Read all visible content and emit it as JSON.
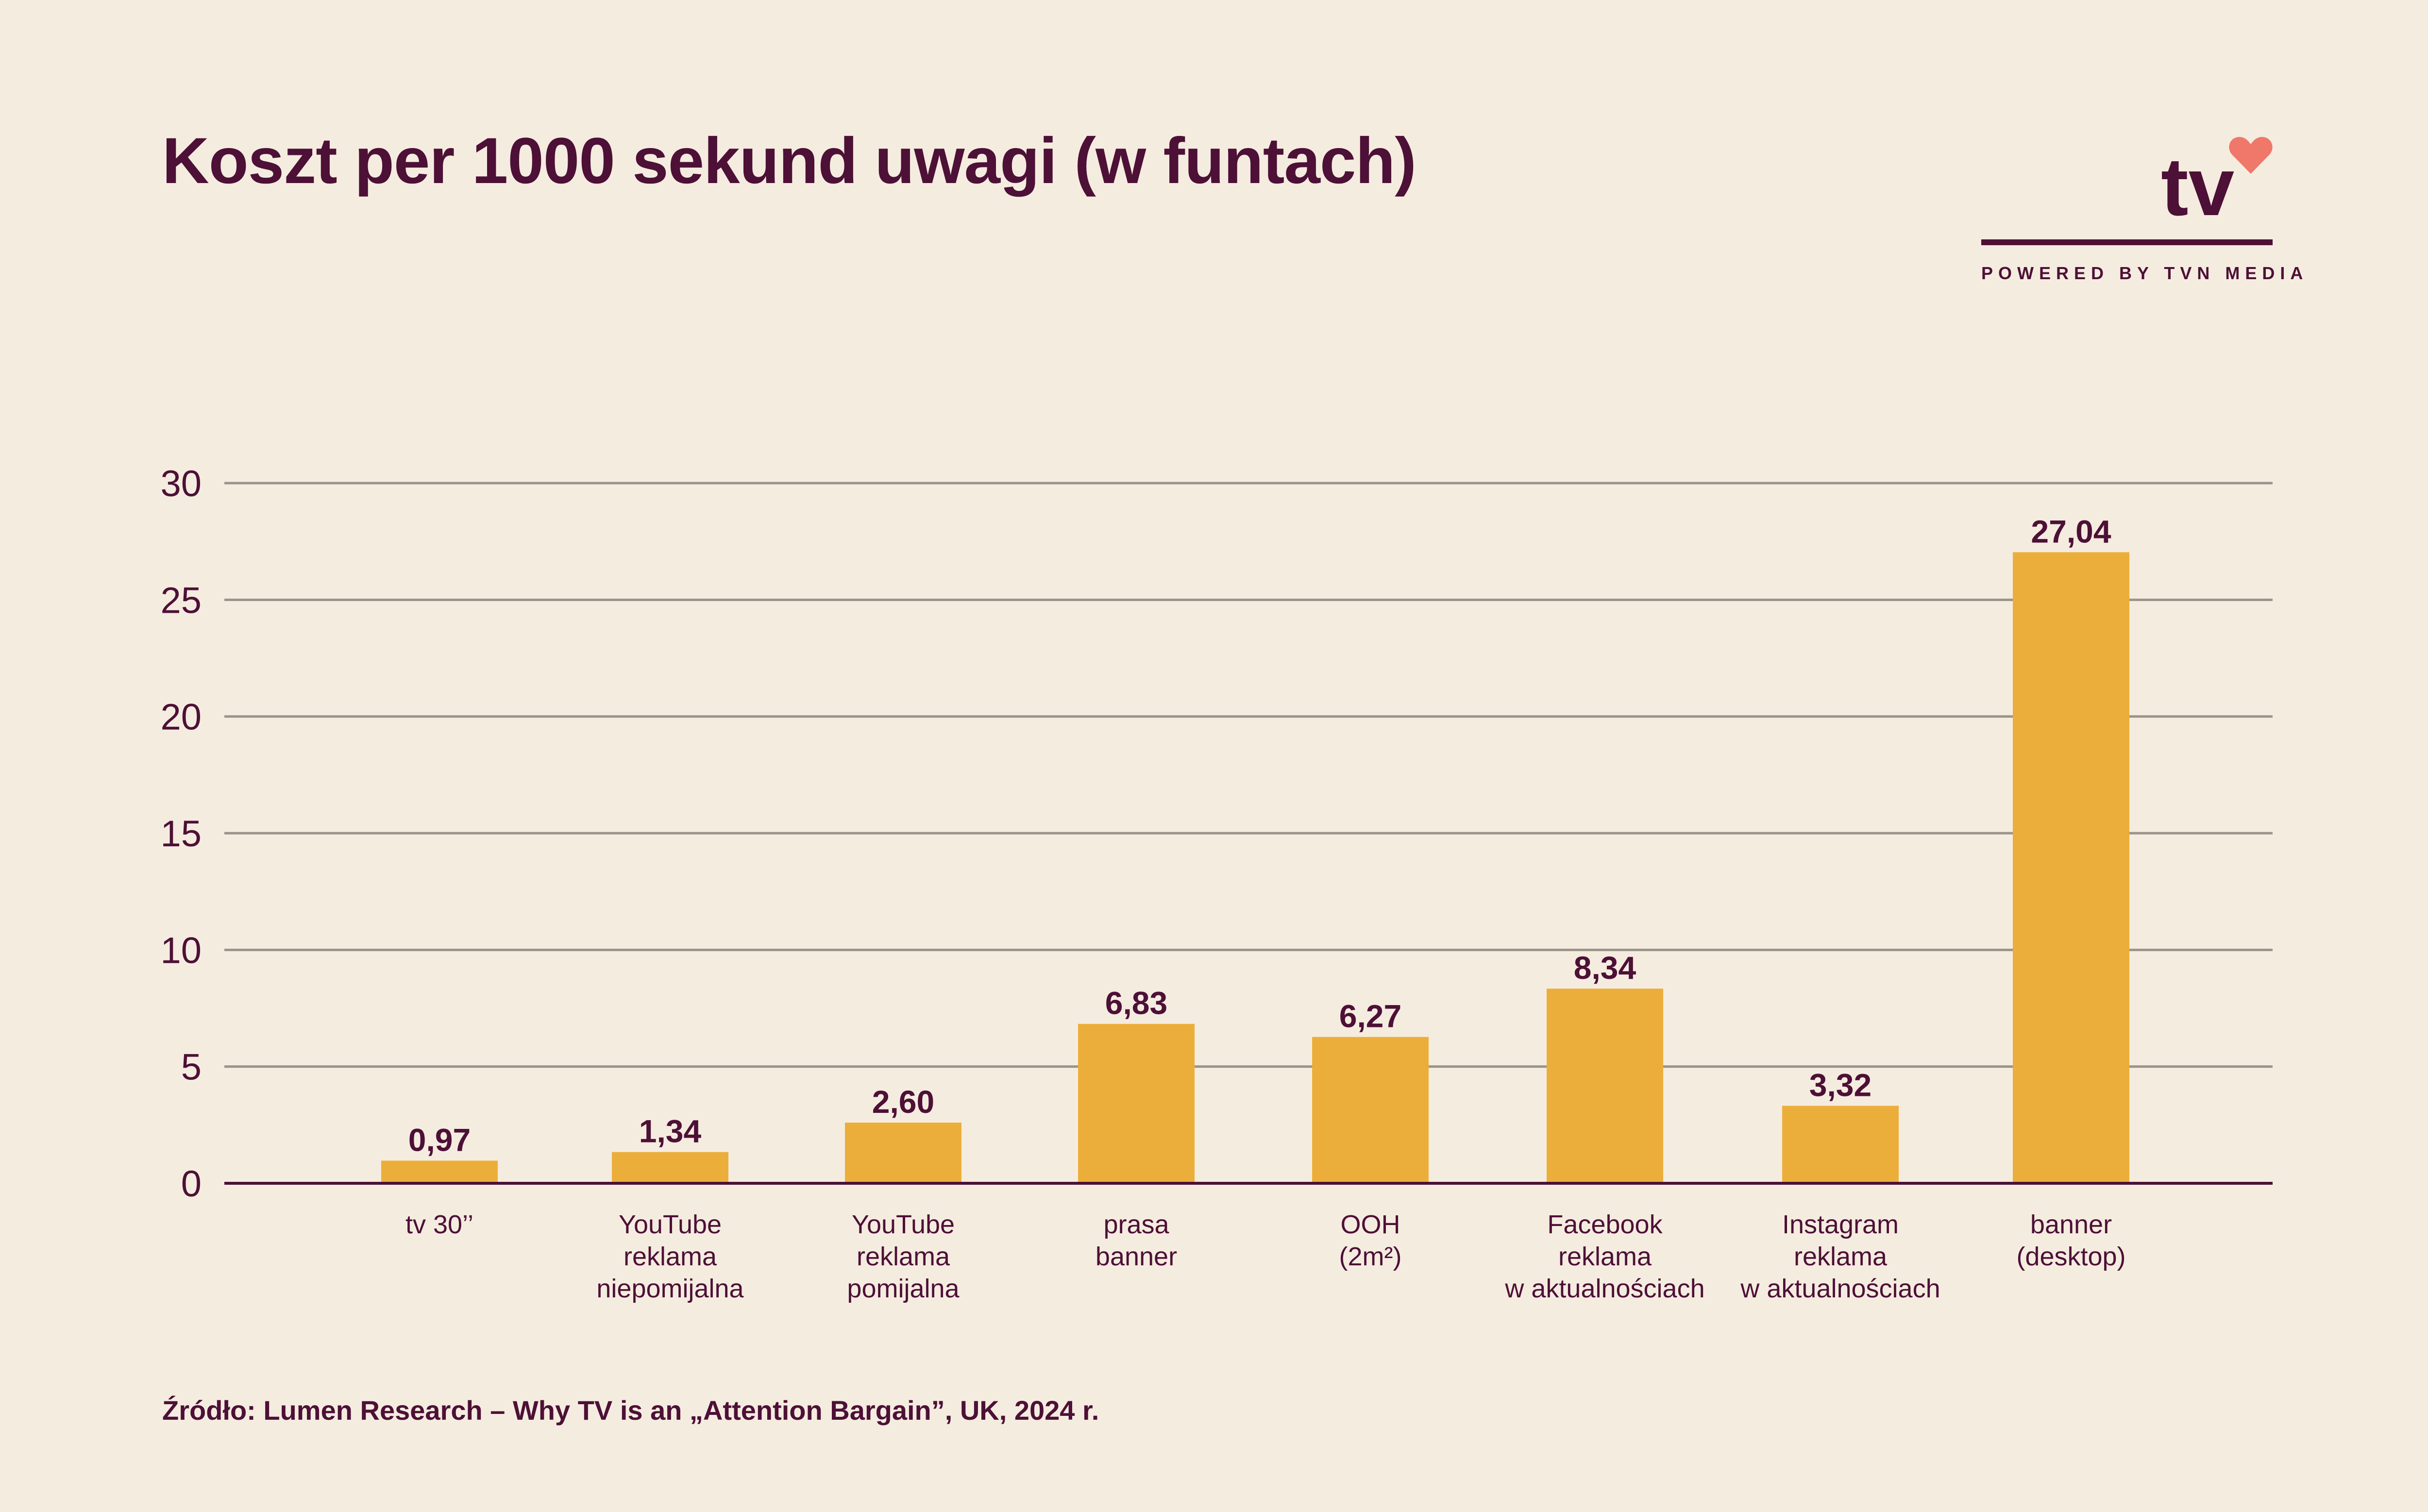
{
  "header": {
    "title": "Koszt per 1000 sekund uwagi (w funtach)"
  },
  "logo": {
    "text": "tv",
    "tagline": "POWERED BY TVN MEDIA",
    "heart_color": "#f0786a"
  },
  "footer": {
    "source": "Źródło: Lumen Research – Why TV is an „Attention Bargain”, UK, 2024 r."
  },
  "colors": {
    "bar": "#ecae3a",
    "text": "#4d1036",
    "grid": "#9a938a",
    "background": "#f5ece0"
  },
  "chart_data": {
    "type": "bar",
    "title": "Koszt per 1000 sekund uwagi (w funtach)",
    "ylim": [
      0,
      30
    ],
    "yticks": [
      0,
      5,
      10,
      15,
      20,
      25,
      30
    ],
    "grid": true,
    "categories": [
      [
        "tv 30’’"
      ],
      [
        "YouTube",
        "reklama",
        "niepomijalna"
      ],
      [
        "YouTube",
        "reklama",
        "pomijalna"
      ],
      [
        "prasa",
        "banner"
      ],
      [
        "OOH",
        "(2m²)"
      ],
      [
        "Facebook",
        "reklama",
        "w aktualnościach"
      ],
      [
        "Instagram",
        "reklama",
        "w aktualnościach"
      ],
      [
        "banner",
        "(desktop)"
      ]
    ],
    "values": [
      0.97,
      1.34,
      2.6,
      6.83,
      6.27,
      8.34,
      3.32,
      27.04
    ],
    "value_labels": [
      "0,97",
      "1,34",
      "2,60",
      "6,83",
      "6,27",
      "8,34",
      "3,32",
      "27,04"
    ]
  }
}
